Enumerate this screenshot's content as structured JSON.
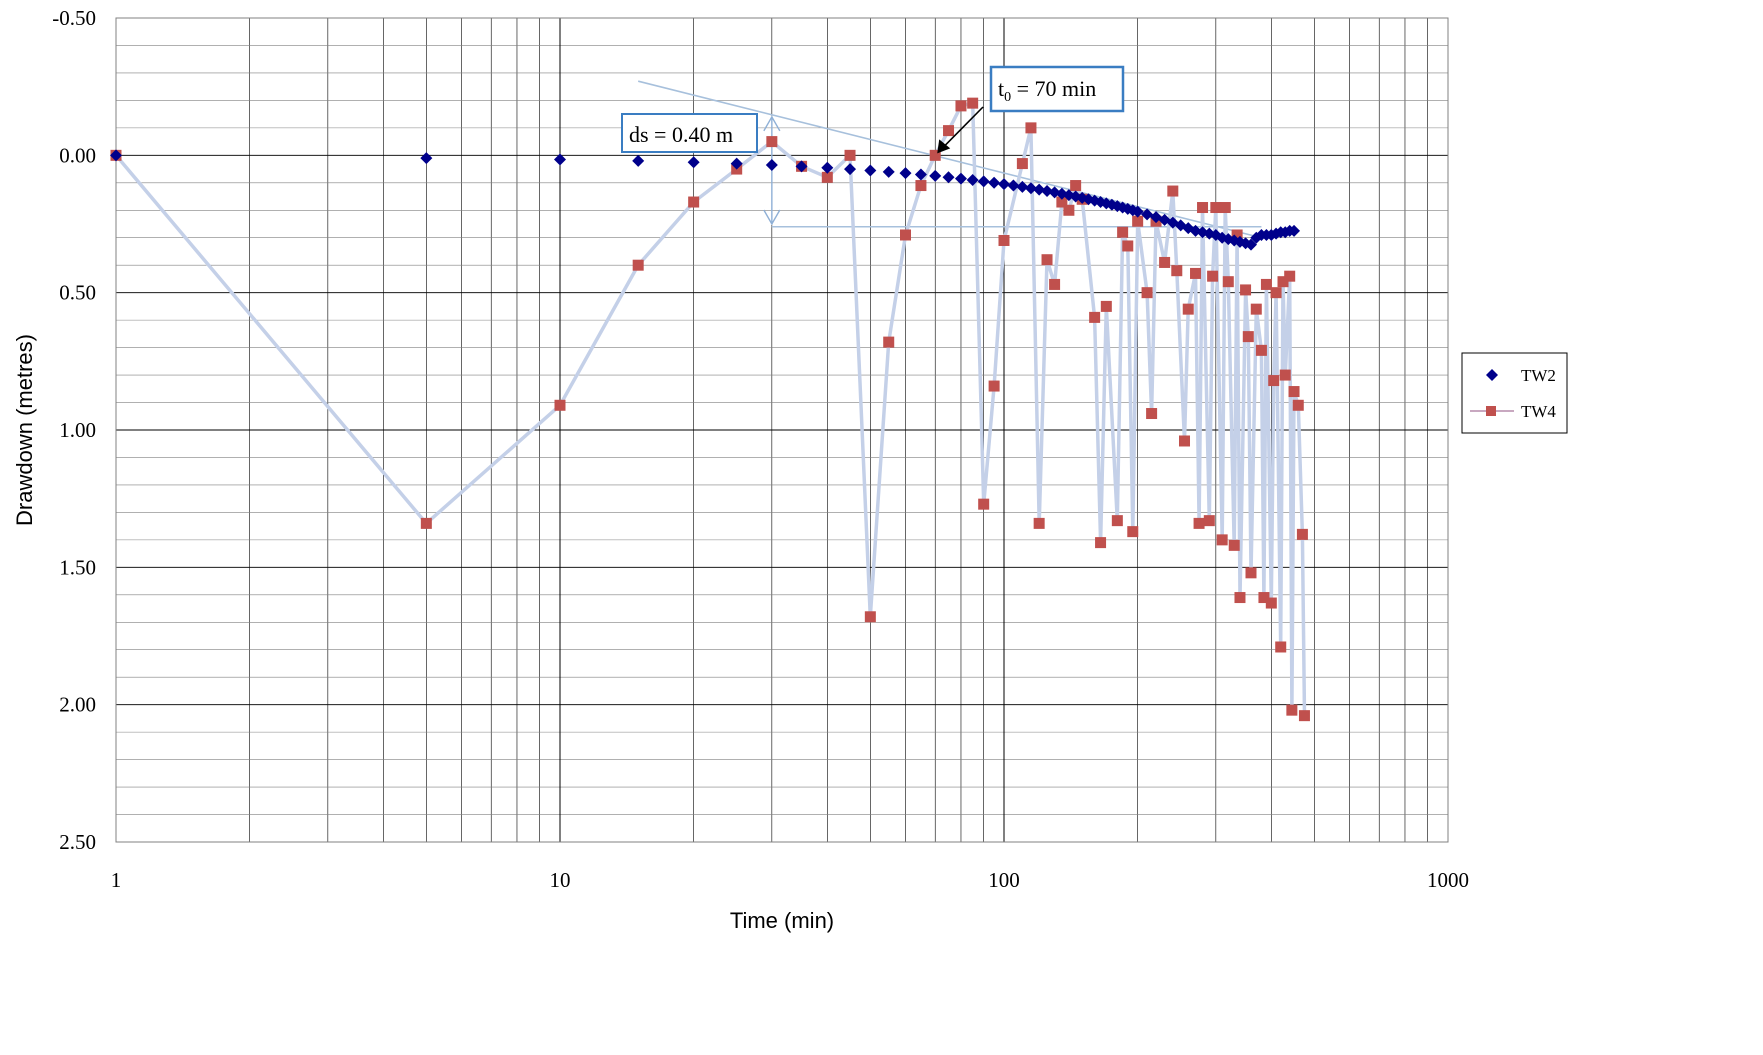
{
  "chart_data": {
    "type": "scatter",
    "xlabel": "Time (min)",
    "ylabel": "Drawdown (metres)",
    "x_scale": "log",
    "xlim": [
      1,
      1000
    ],
    "ylim": [
      -0.5,
      2.5
    ],
    "y_inverted": true,
    "x_ticks": [
      1,
      10,
      100,
      1000
    ],
    "x_tick_labels": [
      "1",
      "10",
      "100",
      "1000"
    ],
    "y_ticks": [
      -0.5,
      0,
      0.5,
      1,
      1.5,
      2,
      2.5
    ],
    "y_tick_labels": [
      "-0.50",
      "0.00",
      "0.50",
      "1.00",
      "1.50",
      "2.00",
      "2.50"
    ],
    "grid": true,
    "legend_position": "right",
    "series": [
      {
        "name": "TW2",
        "color": "#00008B",
        "marker": "diamond",
        "line": false,
        "x": [
          1,
          5,
          10,
          15,
          20,
          25,
          30,
          35,
          40,
          45,
          50,
          55,
          60,
          65,
          70,
          75,
          80,
          85,
          90,
          95,
          100,
          105,
          110,
          115,
          120,
          125,
          130,
          135,
          140,
          145,
          150,
          155,
          160,
          165,
          170,
          175,
          180,
          185,
          190,
          195,
          200,
          210,
          220,
          230,
          240,
          250,
          260,
          270,
          280,
          290,
          300,
          310,
          320,
          330,
          340,
          350,
          360,
          370,
          380,
          390,
          400,
          410,
          420,
          430,
          440,
          450
        ],
        "y": [
          0.0,
          0.01,
          0.015,
          0.02,
          0.025,
          0.03,
          0.035,
          0.04,
          0.045,
          0.05,
          0.055,
          0.06,
          0.065,
          0.07,
          0.075,
          0.08,
          0.085,
          0.09,
          0.095,
          0.1,
          0.105,
          0.11,
          0.115,
          0.12,
          0.125,
          0.13,
          0.135,
          0.14,
          0.145,
          0.15,
          0.155,
          0.16,
          0.165,
          0.17,
          0.175,
          0.18,
          0.185,
          0.19,
          0.195,
          0.2,
          0.205,
          0.215,
          0.225,
          0.235,
          0.245,
          0.255,
          0.265,
          0.275,
          0.28,
          0.285,
          0.29,
          0.3,
          0.305,
          0.31,
          0.315,
          0.32,
          0.325,
          0.3,
          0.29,
          0.29,
          0.29,
          0.285,
          0.28,
          0.28,
          0.275,
          0.275
        ]
      },
      {
        "name": "TW4",
        "color": "#C0504D",
        "line_color": "#C4D0E8",
        "marker": "square",
        "line": true,
        "x": [
          1,
          5,
          10,
          15,
          20,
          25,
          30,
          35,
          40,
          45,
          50,
          55,
          60,
          65,
          70,
          75,
          80,
          85,
          90,
          95,
          100,
          110,
          115,
          120,
          125,
          130,
          135,
          140,
          145,
          150,
          160,
          165,
          170,
          180,
          185,
          190,
          195,
          200,
          210,
          215,
          220,
          230,
          240,
          245,
          255,
          260,
          270,
          275,
          280,
          290,
          295,
          300,
          310,
          315,
          320,
          330,
          335,
          340,
          350,
          355,
          360,
          370,
          380,
          385,
          390,
          400,
          405,
          410,
          420,
          425,
          430,
          440,
          445,
          450,
          460,
          470,
          475
        ],
        "y": [
          0.0,
          1.34,
          0.91,
          0.4,
          0.17,
          0.05,
          -0.05,
          0.04,
          0.08,
          0.0,
          1.68,
          0.68,
          0.29,
          0.11,
          0.0,
          -0.09,
          -0.18,
          -0.19,
          1.27,
          0.84,
          0.31,
          0.03,
          -0.1,
          1.34,
          0.38,
          0.47,
          0.17,
          0.2,
          0.11,
          0.16,
          0.59,
          1.41,
          0.55,
          1.33,
          0.28,
          0.33,
          1.37,
          0.24,
          0.5,
          0.94,
          0.24,
          0.39,
          0.13,
          0.42,
          1.04,
          0.56,
          0.43,
          1.34,
          0.19,
          1.33,
          0.44,
          0.19,
          1.4,
          0.19,
          0.46,
          1.42,
          0.29,
          1.61,
          0.49,
          0.66,
          1.52,
          0.56,
          0.71,
          1.61,
          0.47,
          1.63,
          0.82,
          0.5,
          1.79,
          0.46,
          0.8,
          0.44,
          2.02,
          0.86,
          0.91,
          1.38,
          2.04
        ]
      }
    ],
    "annotations": [
      {
        "text": "ds = 0.40 m"
      },
      {
        "text_main": "t",
        "text_sub": "0",
        "text_rest": " = 70 min"
      }
    ]
  }
}
